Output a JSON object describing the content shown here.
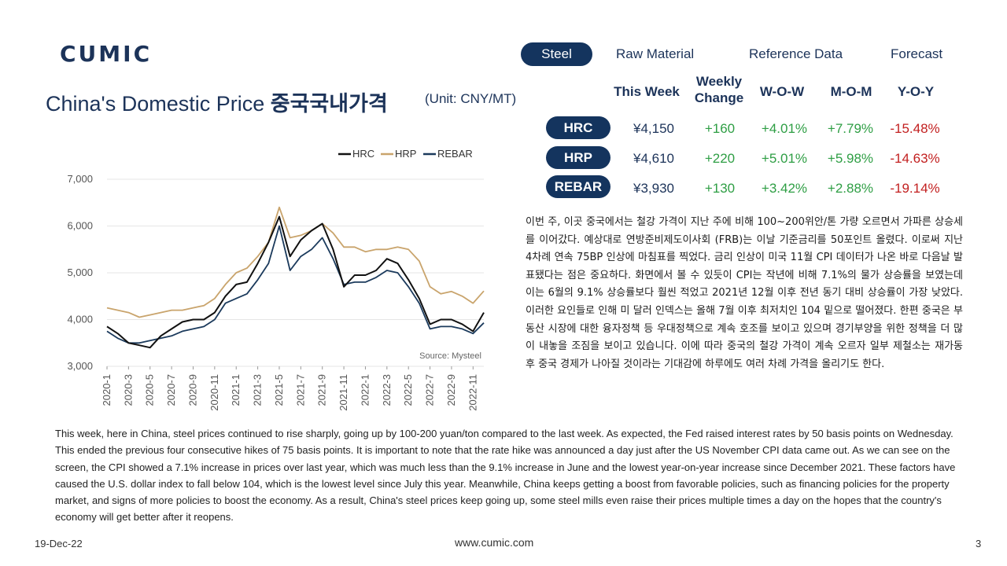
{
  "brand": {
    "logo_text": "CUMIC"
  },
  "tabs": [
    {
      "label": "Steel",
      "active": true
    },
    {
      "label": "Raw Material",
      "active": false
    },
    {
      "label": "Reference Data",
      "active": false
    },
    {
      "label": "Forecast",
      "active": false
    }
  ],
  "title": {
    "en": "China's Domestic Price ",
    "ko": "중국국내가격",
    "unit": "(Unit: CNY/MT)"
  },
  "table": {
    "headers": {
      "this_week": "This Week",
      "weekly_change_1": "Weekly",
      "weekly_change_2": "Change",
      "wow": "W-O-W",
      "mom": "M-O-M",
      "yoy": "Y-O-Y"
    },
    "rows": [
      {
        "product": "HRC",
        "price": "¥4,150",
        "change": "+160",
        "wow": "+4.01%",
        "mom": "+7.79%",
        "yoy": "-15.48%"
      },
      {
        "product": "HRP",
        "price": "¥4,610",
        "change": "+220",
        "wow": "+5.01%",
        "mom": "+5.98%",
        "yoy": "-14.63%"
      },
      {
        "product": "REBAR",
        "price": "¥3,930",
        "change": "+130",
        "wow": "+3.42%",
        "mom": "+2.88%",
        "yoy": "-19.14%"
      }
    ]
  },
  "korean_text": "이번 주, 이곳 중국에서는 철강 가격이 지난 주에 비해 100~200위안/톤 가량 오르면서 가파른 상승세를 이어갔다. 예상대로 연방준비제도이사회 (FRB)는 이날 기준금리를 50포인트 올렸다. 이로써 지난 4차례 연속 75BP 인상에 마침표를 찍었다. 금리 인상이 미국 11월 CPI 데이터가 나온 바로 다음날 발표됐다는 점은 중요하다. 화면에서 볼 수 있듯이 CPI는 작년에 비해 7.1%의 물가 상승률을 보였는데 이는 6월의 9.1% 상승률보다 훨씬 적었고 2021년 12월 이후 전년 동기 대비 상승률이 가장 낮았다. 이러한 요인들로 인해 미 달러 인덱스는 올해 7월 이후 최저치인 104 밑으로 떨어졌다. 한편 중국은 부동산 시장에 대한 융자정책 등 우대정책으로 계속 호조를 보이고 있으며 경기부양을 위한 정책을 더 많이 내놓을 조짐을 보이고 있습니다. 이에 따라 중국의 철강 가격이 계속 오르자 일부 제철소는 재가동 후 중국 경제가 나아질 것이라는 기대감에 하루에도 여러 차례 가격을 올리기도 한다.",
  "english_text": "This week, here in China, steel prices continued to rise sharply, going up by 100-200 yuan/ton compared to the last week. As expected, the Fed raised interest rates by 50 basis points on Wednesday. This ended the previous four consecutive hikes of 75 basis points. It is important to note that the rate hike was announced a day just after the US November CPI data came out. As we can see on the screen, the CPI showed a 7.1% increase in prices over last year, which was much less than the 9.1% increase in June and the lowest year-on-year increase since December 2021. These factors have caused the U.S. dollar index to fall below 104, which is the lowest level since July this year. Meanwhile, China keeps getting a boost from favorable policies, such as financing policies for the property market, and signs of more policies to boost the economy. As a result, China's steel prices keep going up, some steel mills even raise their prices multiple times a day on the hopes that the country's economy will get better after it reopens.",
  "footer": {
    "date": "19-Dec-22",
    "url": "www.cumic.com",
    "page": "3"
  },
  "colors": {
    "hrc": "#111111",
    "hrp": "#c9a46c",
    "rebar": "#1b3a5c",
    "navy": "#14345e",
    "positive": "#2e9e44",
    "negative": "#c21f1f"
  },
  "chart_data": {
    "type": "line",
    "source": "Source: Mysteel",
    "ylim": [
      3000,
      7000
    ],
    "yticks": [
      3000,
      4000,
      5000,
      6000,
      7000
    ],
    "ytick_labels": [
      "3,000",
      "4,000",
      "5,000",
      "6,000",
      "7,000"
    ],
    "xticks": [
      "2020-1",
      "2020-3",
      "2020-5",
      "2020-7",
      "2020-9",
      "2020-11",
      "2021-1",
      "2021-3",
      "2021-5",
      "2021-7",
      "2021-9",
      "2021-11",
      "2022-1",
      "2022-3",
      "2022-5",
      "2022-7",
      "2022-9",
      "2022-11"
    ],
    "x": [
      "2020-1",
      "2020-2",
      "2020-3",
      "2020-4",
      "2020-5",
      "2020-6",
      "2020-7",
      "2020-8",
      "2020-9",
      "2020-10",
      "2020-11",
      "2020-12",
      "2021-1",
      "2021-2",
      "2021-3",
      "2021-4",
      "2021-5",
      "2021-6",
      "2021-7",
      "2021-8",
      "2021-9",
      "2021-10",
      "2021-11",
      "2021-12",
      "2022-1",
      "2022-2",
      "2022-3",
      "2022-4",
      "2022-5",
      "2022-6",
      "2022-7",
      "2022-8",
      "2022-9",
      "2022-10",
      "2022-11",
      "2022-12"
    ],
    "series": [
      {
        "name": "HRC",
        "values": [
          3850,
          3700,
          3500,
          3450,
          3400,
          3650,
          3800,
          3950,
          4000,
          4000,
          4150,
          4500,
          4750,
          4800,
          5200,
          5650,
          6200,
          5350,
          5700,
          5900,
          6050,
          5500,
          4700,
          4950,
          4950,
          5050,
          5300,
          5200,
          4850,
          4450,
          3900,
          4000,
          4000,
          3900,
          3750,
          4150
        ]
      },
      {
        "name": "HRP",
        "values": [
          4250,
          4200,
          4150,
          4050,
          4100,
          4150,
          4200,
          4200,
          4250,
          4300,
          4450,
          4750,
          5000,
          5100,
          5350,
          5650,
          6400,
          5750,
          5800,
          5900,
          6050,
          5850,
          5550,
          5550,
          5450,
          5500,
          5500,
          5550,
          5500,
          5250,
          4700,
          4550,
          4600,
          4500,
          4350,
          4610
        ]
      },
      {
        "name": "REBAR",
        "values": [
          3750,
          3600,
          3500,
          3500,
          3550,
          3600,
          3650,
          3750,
          3800,
          3850,
          4000,
          4350,
          4450,
          4550,
          4850,
          5200,
          6000,
          5050,
          5350,
          5500,
          5750,
          5300,
          4750,
          4800,
          4800,
          4900,
          5050,
          5000,
          4700,
          4350,
          3800,
          3850,
          3850,
          3800,
          3700,
          3930
        ]
      }
    ]
  }
}
